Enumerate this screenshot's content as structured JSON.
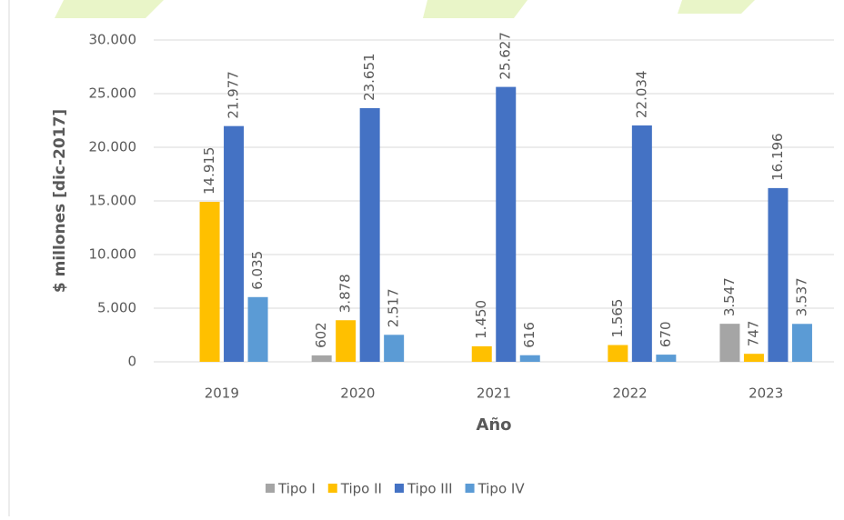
{
  "chart_data": {
    "type": "bar",
    "categories": [
      "2019",
      "2020",
      "2021",
      "2022",
      "2023"
    ],
    "series": [
      {
        "name": "Tipo I",
        "color": "#a5a5a5",
        "values": [
          null,
          602,
          null,
          null,
          3547
        ],
        "value_labels": [
          null,
          "602",
          null,
          null,
          "3.547"
        ]
      },
      {
        "name": "Tipo II",
        "color": "#ffc000",
        "values": [
          14915,
          3878,
          1450,
          1565,
          747
        ],
        "value_labels": [
          "14.915",
          "3.878",
          "1.450",
          "1.565",
          "747"
        ]
      },
      {
        "name": "Tipo III",
        "color": "#4472c4",
        "values": [
          21977,
          23651,
          25627,
          22034,
          16196
        ],
        "value_labels": [
          "21.977",
          "23.651",
          "25.627",
          "22.034",
          "16.196"
        ]
      },
      {
        "name": "Tipo IV",
        "color": "#5b9bd5",
        "values": [
          6035,
          2517,
          616,
          670,
          3537
        ],
        "value_labels": [
          "6.035",
          "2.517",
          "616",
          "670",
          "3.537"
        ]
      }
    ],
    "ylim": [
      0,
      30000
    ],
    "yticks": [
      0,
      {
        "value": 5000,
        "label": "5.000"
      },
      {
        "value": 10000,
        "label": "10.000"
      },
      {
        "value": 15000,
        "label": "15.000"
      },
      {
        "value": 20000,
        "label": "20.000"
      },
      {
        "value": 25000,
        "label": "25.000"
      },
      {
        "value": 30000,
        "label": "30.000"
      }
    ],
    "y_label": "$ millones  [dic-2017]",
    "x_label": "Año",
    "grid": true,
    "legend": "bottom"
  }
}
